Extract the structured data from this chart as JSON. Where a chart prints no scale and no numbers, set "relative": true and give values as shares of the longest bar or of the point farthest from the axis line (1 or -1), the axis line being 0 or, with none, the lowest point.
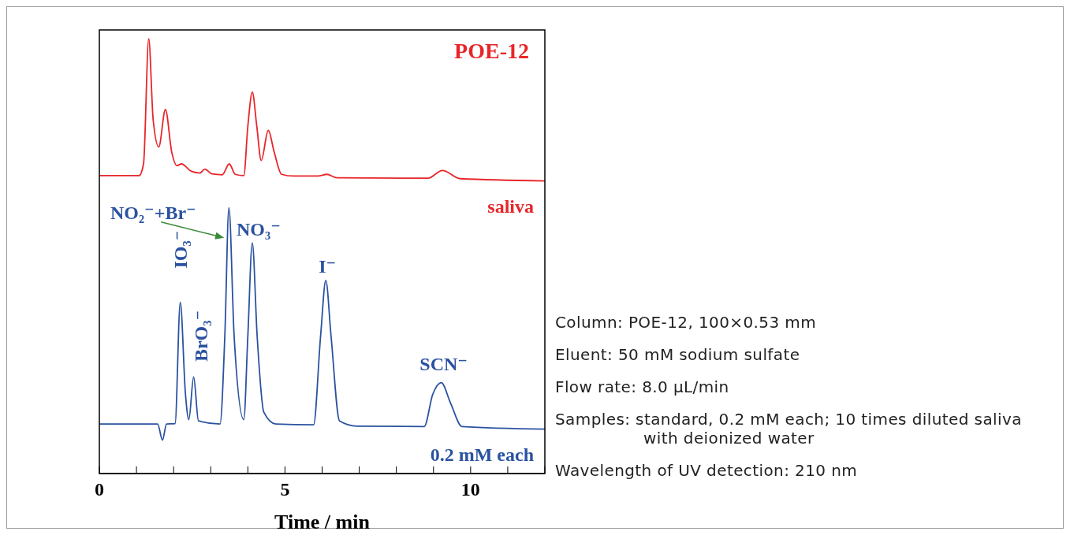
{
  "chart_data": {
    "type": "line",
    "relative": true,
    "xlabel": "Time / min",
    "xlim": [
      0,
      12
    ],
    "xticks": [
      0,
      {
        "value": 1,
        "label": null
      },
      {
        "value": 2,
        "label": null
      },
      {
        "value": 3,
        "label": null
      },
      {
        "value": 4,
        "label": null
      },
      5,
      {
        "value": 6,
        "label": null
      },
      {
        "value": 7,
        "label": null
      },
      {
        "value": 8,
        "label": null
      },
      {
        "value": 9,
        "label": null
      },
      10,
      {
        "value": 11,
        "label": null
      },
      {
        "value": 12,
        "label": null
      }
    ],
    "marker": "none",
    "line_style": "solid",
    "series": [
      {
        "name": "saliva",
        "color": "#e8262a",
        "x": [
          0,
          1.07,
          1.19,
          1.33,
          1.45,
          1.6,
          1.78,
          1.95,
          2.09,
          2.21,
          2.48,
          2.71,
          2.84,
          3.03,
          3.31,
          3.5,
          3.66,
          3.89,
          4.0,
          4.12,
          4.24,
          4.36,
          4.55,
          4.71,
          4.91,
          5.23,
          5.89,
          6.13,
          6.4,
          8.85,
          9.24,
          9.72,
          12
        ],
        "values": [
          0.685,
          0.685,
          0.712,
          1.0,
          0.813,
          0.751,
          0.837,
          0.739,
          0.708,
          0.712,
          0.695,
          0.691,
          0.7,
          0.689,
          0.687,
          0.712,
          0.688,
          0.685,
          0.799,
          0.877,
          0.799,
          0.72,
          0.789,
          0.739,
          0.688,
          0.684,
          0.684,
          0.688,
          0.68,
          0.679,
          0.697,
          0.678,
          0.673
        ]
      },
      {
        "name": "0.2 mM each",
        "color": "#2a52a0",
        "x": [
          0,
          1.57,
          1.7,
          1.81,
          2.04,
          2.18,
          2.32,
          2.41,
          2.54,
          2.67,
          3.25,
          3.38,
          3.49,
          3.63,
          3.89,
          4.0,
          4.12,
          4.25,
          4.43,
          4.75,
          5.77,
          5.96,
          6.1,
          6.24,
          6.47,
          6.94,
          8.75,
          8.98,
          9.21,
          9.46,
          9.77,
          12
        ],
        "values": [
          0.114,
          0.114,
          0.077,
          0.114,
          0.115,
          0.394,
          0.182,
          0.124,
          0.222,
          0.121,
          0.114,
          0.317,
          0.611,
          0.317,
          0.124,
          0.317,
          0.53,
          0.317,
          0.141,
          0.114,
          0.112,
          0.317,
          0.444,
          0.317,
          0.121,
          0.109,
          0.108,
          0.182,
          0.209,
          0.162,
          0.108,
          0.102
        ]
      }
    ],
    "annotations": [
      "POE-12",
      {
        "text": "NO₂⁻+Br⁻",
        "x": 3.49,
        "y": 0.611
      },
      {
        "text": "NO₃⁻",
        "x": 4.12,
        "y": 0.53
      },
      {
        "text": "IO₃⁻",
        "x": 2.18,
        "y": 0.394
      },
      {
        "text": "BrO₃⁻",
        "x": 2.54,
        "y": 0.222
      },
      {
        "text": "I⁻",
        "x": 6.1,
        "y": 0.444
      },
      {
        "text": "SCN⁻",
        "x": 9.21,
        "y": 0.209
      },
      "Column: POE-12, 100×0.53 mm",
      "Eluent: 50 mM sodium sulfate",
      "Flow rate: 8.0 µL/min",
      "Samples: standard, 0.2 mM each; 10 times diluted saliva with deionized water",
      "Wavelength of UV detection: 210 nm"
    ]
  }
}
